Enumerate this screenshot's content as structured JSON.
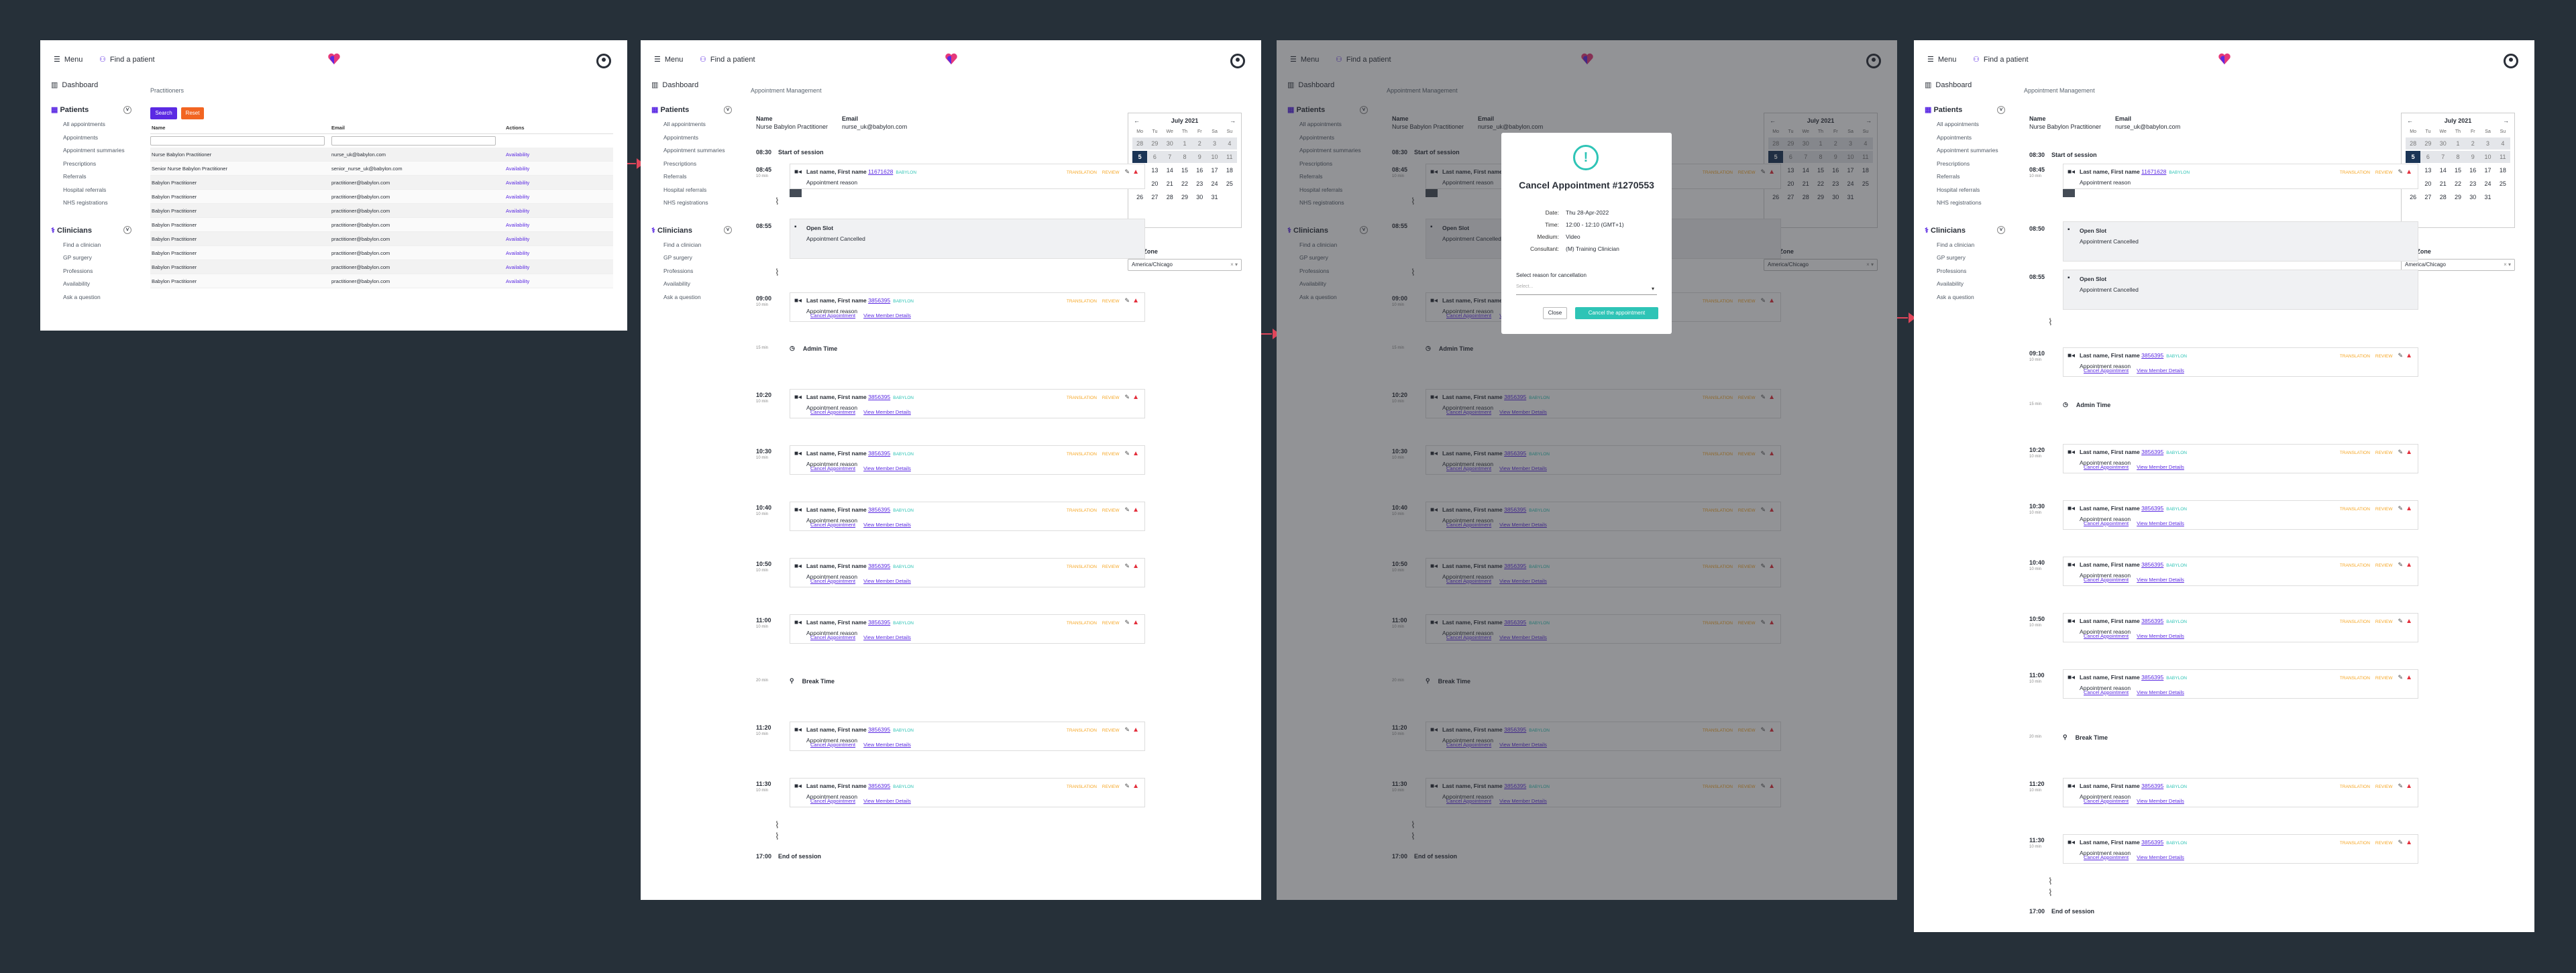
{
  "nav": {
    "menu": "Menu",
    "find_patient": "Find a patient",
    "dashboard": "Dashboard",
    "patients_heading": "Patients",
    "patients_items": [
      "All appointments",
      "Appointments",
      "Appointment summaries",
      "Prescriptions",
      "Referrals",
      "Hospital referrals",
      "NHS registrations"
    ],
    "clinicians_heading": "Clinicians",
    "clinicians_items": [
      "Find a clinician",
      "GP surgery",
      "Professions",
      "Availability",
      "Ask a question"
    ]
  },
  "practitioners": {
    "title": "Practitioners",
    "search": "Search",
    "reset": "Reset",
    "columns": [
      "Name",
      "Email",
      "Actions"
    ],
    "rows": [
      {
        "name": "Nurse Babylon Practitioner",
        "email": "nurse_uk@babylon.com",
        "action": "Availability"
      },
      {
        "name": "Senior Nurse Babylon Practitioner",
        "email": "senior_nurse_uk@babylon.com",
        "action": "Availability"
      },
      {
        "name": "Babylon Practitioner",
        "email": "practitioner@babylon.com",
        "action": "Availability"
      },
      {
        "name": "Babylon Practitioner",
        "email": "practitioner@babylon.com",
        "action": "Availability"
      },
      {
        "name": "Babylon Practitioner",
        "email": "practitioner@babylon.com",
        "action": "Availability"
      },
      {
        "name": "Babylon Practitioner",
        "email": "practitioner@babylon.com",
        "action": "Availability"
      },
      {
        "name": "Babylon Practitioner",
        "email": "practitioner@babylon.com",
        "action": "Availability"
      },
      {
        "name": "Babylon Practitioner",
        "email": "practitioner@babylon.com",
        "action": "Availability"
      },
      {
        "name": "Babylon Practitioner",
        "email": "practitioner@babylon.com",
        "action": "Availability"
      },
      {
        "name": "Babylon Practitioner",
        "email": "practitioner@babylon.com",
        "action": "Availability"
      }
    ]
  },
  "appointments": {
    "title": "Appointment Management",
    "name_label": "Name",
    "name_value": "Nurse Babylon Practitioner",
    "email_label": "Email",
    "email_value": "nurse_uk@babylon.com",
    "start_time": "08:30",
    "start_label": "Start of session",
    "end_time": "17:00",
    "end_label": "End of session",
    "patient_name": "Last name, First name",
    "patient_nhs_a": "11671628",
    "patient_nhs_b": "3856395",
    "partner_tag": "BABYLON",
    "reason": "Appointment reason",
    "translation": "TRANSLATION",
    "review": "REVIEW",
    "cancel_link": "Cancel Appointment",
    "view_link": "View Member Details",
    "open_slot": "Open Slot",
    "appt_cancelled": "Appointment Cancelled",
    "admin_time": "Admin Time",
    "break_time": "Break Time",
    "dur_10": "10 min",
    "dur_15": "15 min",
    "dur_20": "20 min",
    "times": {
      "t0845": "08:45",
      "t0850": "08:50",
      "t0855": "08:55",
      "t0900": "09:00",
      "t0910": "09:10",
      "t1020": "10:20",
      "t1030": "10:30",
      "t1040": "10:40",
      "t1050": "10:50",
      "t1100": "11:00",
      "t1120": "11:20",
      "t1130": "11:30"
    },
    "calendar": {
      "month": "July 2021",
      "prev": "←",
      "next": "→",
      "dow": [
        "Mo",
        "Tu",
        "We",
        "Th",
        "Fr",
        "Sa",
        "Su"
      ],
      "selected_day": "5"
    },
    "timezone_label": "Time Zone",
    "timezone_value": "America/Chicago"
  },
  "modal": {
    "title": "Cancel Appointment #1270553",
    "date_k": "Date:",
    "date_v": "Thu 28-Apr-2022",
    "time_k": "Time:",
    "time_v": "12:00 - 12:10 (GMT+1)",
    "medium_k": "Medium:",
    "medium_v": "Video",
    "consultant_k": "Consultant:",
    "consultant_v": "(M) Training Clinician",
    "reason_label": "Select reason for cancellation",
    "select_placeholder": "Select...",
    "close": "Close",
    "confirm": "Cancel the appointment"
  },
  "colors": {
    "backdrop": "#263039",
    "brand_purple": "#5b2ae3",
    "teal": "#2ec4b6",
    "orange": "#f26522",
    "arrow_red": "#e0465a"
  }
}
